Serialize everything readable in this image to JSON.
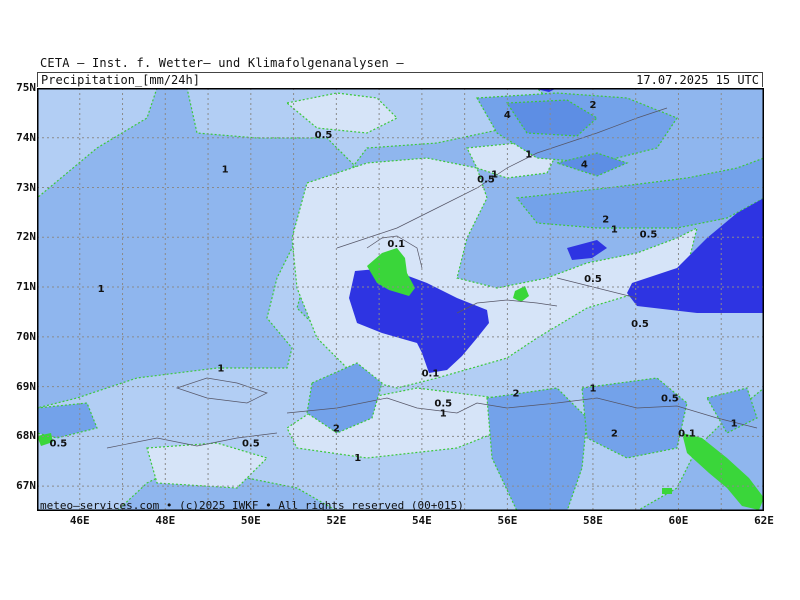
{
  "header": {
    "title": "CETA — Inst. f. Wetter— und Klimafolgenanalysen —",
    "parameter": "Precipitation_[mm/24h]",
    "valid_time": "17.07.2025 15 UTC"
  },
  "footer": {
    "credit": "meteo—services.com • (c)2025 IWKF • All rights reserved (00+015)"
  },
  "axes": {
    "lat_labels": [
      "75N",
      "74N",
      "73N",
      "72N",
      "71N",
      "70N",
      "69N",
      "68N",
      "67N"
    ],
    "lon_labels": [
      "46E",
      "48E",
      "50E",
      "52E",
      "54E",
      "56E",
      "58E",
      "60E",
      "62E"
    ],
    "lat_range": [
      66.5,
      75
    ],
    "lon_range": [
      45,
      62
    ]
  },
  "legend_colors": {
    "0.1": "#d6e4f8",
    "0.5": "#b2cef4",
    "1": "#8fb6ee",
    "2": "#73a2ea",
    "4": "#5d8ee4",
    "heavy": "#2e34e2",
    "green": "#3ad63a",
    "contour": "#3cc83c"
  },
  "contour_labels": [
    {
      "text": "0.5",
      "lon": 51.7,
      "lat": 74.0
    },
    {
      "text": "1",
      "lon": 49.4,
      "lat": 73.3
    },
    {
      "text": "1",
      "lon": 46.5,
      "lat": 70.9
    },
    {
      "text": "0.1",
      "lon": 53.4,
      "lat": 71.8
    },
    {
      "text": "4",
      "lon": 56.0,
      "lat": 74.4
    },
    {
      "text": "2",
      "lon": 58.0,
      "lat": 74.6
    },
    {
      "text": "1",
      "lon": 56.5,
      "lat": 73.6
    },
    {
      "text": "4",
      "lon": 57.8,
      "lat": 73.4
    },
    {
      "text": "0.5",
      "lon": 55.5,
      "lat": 73.1
    },
    {
      "text": "1",
      "lon": 55.7,
      "lat": 73.2
    },
    {
      "text": "2",
      "lon": 58.3,
      "lat": 72.3
    },
    {
      "text": "1",
      "lon": 58.5,
      "lat": 72.1
    },
    {
      "text": "0.5",
      "lon": 59.3,
      "lat": 72.0
    },
    {
      "text": "0.5",
      "lon": 58.0,
      "lat": 71.1
    },
    {
      "text": "0.5",
      "lon": 59.1,
      "lat": 70.2
    },
    {
      "text": "1",
      "lon": 49.3,
      "lat": 69.3
    },
    {
      "text": "0.1",
      "lon": 54.2,
      "lat": 69.2
    },
    {
      "text": "0.5",
      "lon": 54.5,
      "lat": 68.6
    },
    {
      "text": "1",
      "lon": 54.5,
      "lat": 68.4
    },
    {
      "text": "2",
      "lon": 52.0,
      "lat": 68.1
    },
    {
      "text": "0.5",
      "lon": 50.0,
      "lat": 67.8
    },
    {
      "text": "1",
      "lon": 52.5,
      "lat": 67.5
    },
    {
      "text": "2",
      "lon": 56.2,
      "lat": 68.8
    },
    {
      "text": "1",
      "lon": 58.0,
      "lat": 68.9
    },
    {
      "text": "0.5",
      "lon": 59.8,
      "lat": 68.7
    },
    {
      "text": "2",
      "lon": 58.5,
      "lat": 68.0
    },
    {
      "text": "0.1",
      "lon": 60.2,
      "lat": 68.0
    },
    {
      "text": "1",
      "lon": 61.3,
      "lat": 68.2
    },
    {
      "text": "0.5",
      "lon": 45.5,
      "lat": 67.8
    }
  ]
}
